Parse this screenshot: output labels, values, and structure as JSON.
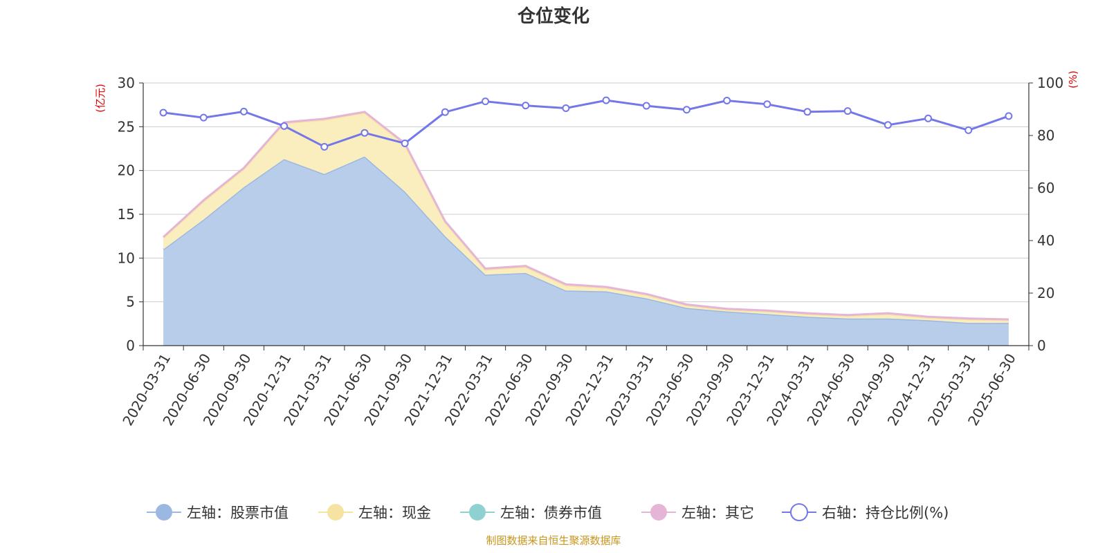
{
  "chart_data": {
    "type": "area",
    "title": "仓位变化",
    "source_note": "制图数据来自恒生聚源数据库",
    "x": [
      "2020-03-31",
      "2020-06-30",
      "2020-09-30",
      "2020-12-31",
      "2021-03-31",
      "2021-06-30",
      "2021-09-30",
      "2021-12-31",
      "2022-03-31",
      "2022-06-30",
      "2022-09-30",
      "2022-12-31",
      "2023-03-31",
      "2023-06-30",
      "2023-09-30",
      "2023-12-31",
      "2024-03-31",
      "2024-06-30",
      "2024-09-30",
      "2024-12-31",
      "2025-03-31",
      "2025-06-30"
    ],
    "left_axis": {
      "unit": "(亿元)",
      "min": 0,
      "max": 30,
      "ticks": [
        0,
        5,
        10,
        15,
        20,
        25,
        30
      ]
    },
    "right_axis": {
      "unit": "(%)",
      "min": 0,
      "max": 100,
      "ticks": [
        0,
        20,
        40,
        60,
        80,
        100
      ]
    },
    "grid": true,
    "legend_position": "bottom",
    "stacked": true,
    "series": [
      {
        "name": "左轴：股票市值",
        "axis": "left",
        "kind": "area",
        "color": "#9ab8e2",
        "fill": "#b8cdea",
        "values": [
          11.0,
          14.4,
          18.1,
          21.3,
          19.6,
          21.6,
          17.6,
          12.5,
          8.1,
          8.3,
          6.3,
          6.2,
          5.4,
          4.3,
          3.9,
          3.6,
          3.3,
          3.1,
          3.1,
          2.9,
          2.6,
          2.6
        ]
      },
      {
        "name": "左轴：现金",
        "axis": "left",
        "kind": "area",
        "color": "#f7e3a1",
        "fill": "#faedbe",
        "values": [
          1.3,
          2.1,
          2.1,
          4.1,
          6.2,
          5.0,
          5.4,
          1.6,
          0.6,
          0.7,
          0.6,
          0.4,
          0.4,
          0.3,
          0.2,
          0.3,
          0.3,
          0.3,
          0.5,
          0.3,
          0.4,
          0.3
        ]
      },
      {
        "name": "左轴：债券市值",
        "axis": "left",
        "kind": "area",
        "color": "#8fd1d1",
        "fill": "#b5e3e3",
        "values": [
          0,
          0,
          0,
          0,
          0,
          0,
          0,
          0,
          0,
          0,
          0,
          0,
          0,
          0,
          0,
          0,
          0,
          0,
          0,
          0,
          0,
          0
        ]
      },
      {
        "name": "左轴：其它",
        "axis": "left",
        "kind": "area",
        "color": "#e5b5d8",
        "fill": "#f0d0e6",
        "values": [
          0.1,
          0.1,
          0.1,
          0.1,
          0.1,
          0.1,
          0.1,
          0.1,
          0.1,
          0.1,
          0.1,
          0.1,
          0.1,
          0.1,
          0.1,
          0.1,
          0.1,
          0.1,
          0.1,
          0.1,
          0.1,
          0.1
        ]
      },
      {
        "name": "右轴：持仓比例(%)",
        "axis": "right",
        "kind": "line",
        "color": "#7377e8",
        "values": [
          88.7,
          86.8,
          89.1,
          83.6,
          75.7,
          81.0,
          77.0,
          88.9,
          93.0,
          91.4,
          90.4,
          93.4,
          91.3,
          89.8,
          93.3,
          91.9,
          89.0,
          89.3,
          84.0,
          86.5,
          82.0,
          87.4
        ]
      }
    ]
  }
}
